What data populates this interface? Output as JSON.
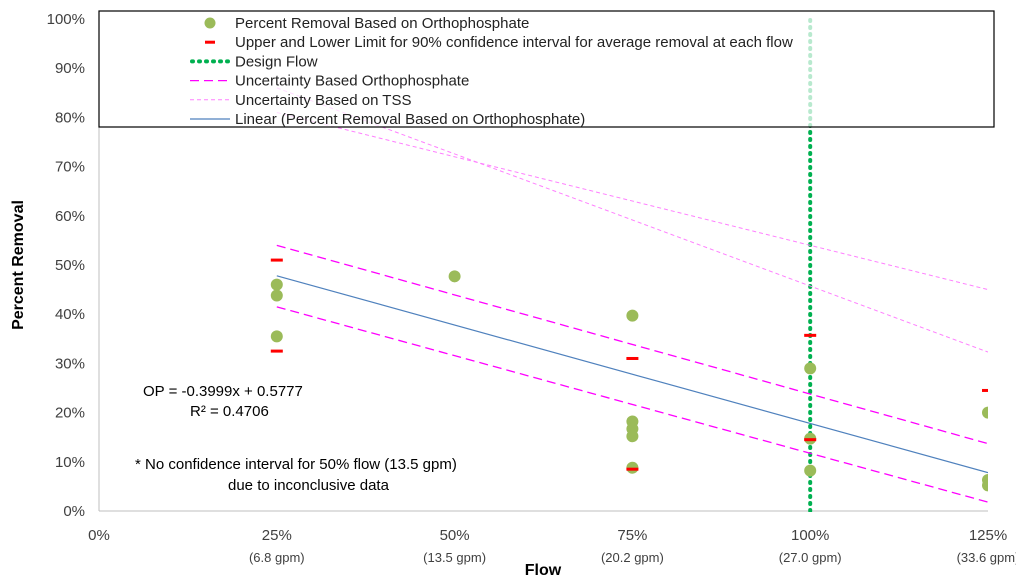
{
  "chart_data": {
    "type": "scatter",
    "xlabel": "Flow",
    "ylabel": "Percent Removal",
    "xlim": [
      0,
      1.25
    ],
    "ylim": [
      0,
      1.0
    ],
    "x_ticks": [
      {
        "value": 0,
        "label": "0%",
        "sub": ""
      },
      {
        "value": 0.25,
        "label": "25%",
        "sub": "(6.8 gpm)"
      },
      {
        "value": 0.5,
        "label": "50%",
        "sub": "(13.5 gpm)"
      },
      {
        "value": 0.75,
        "label": "75%",
        "sub": "(20.2 gpm)"
      },
      {
        "value": 1.0,
        "label": "100%",
        "sub": "(27.0 gpm)"
      },
      {
        "value": 1.25,
        "label": "125%",
        "sub": "(33.6 gpm)"
      }
    ],
    "y_ticks": [
      {
        "value": 0,
        "label": "0%"
      },
      {
        "value": 0.1,
        "label": "10%"
      },
      {
        "value": 0.2,
        "label": "20%"
      },
      {
        "value": 0.3,
        "label": "30%"
      },
      {
        "value": 0.4,
        "label": "40%"
      },
      {
        "value": 0.5,
        "label": "50%"
      },
      {
        "value": 0.6,
        "label": "60%"
      },
      {
        "value": 0.7,
        "label": "70%"
      },
      {
        "value": 0.8,
        "label": "80%"
      },
      {
        "value": 0.9,
        "label": "90%"
      },
      {
        "value": 1.0,
        "label": "100%"
      }
    ],
    "series": [
      {
        "name": "Percent Removal Based on Orthophosphate",
        "kind": "points",
        "color": "#9bbb59",
        "x": [
          0.25,
          0.25,
          0.25,
          0.5,
          0.75,
          0.75,
          0.75,
          0.75,
          0.75,
          1.0,
          1.0,
          1.0,
          1.25,
          1.25,
          1.25
        ],
        "y": [
          0.46,
          0.438,
          0.355,
          0.477,
          0.397,
          0.182,
          0.167,
          0.152,
          0.088,
          0.29,
          0.147,
          0.082,
          0.2,
          0.063,
          0.052
        ]
      },
      {
        "name": "Upper and Lower Limit for 90% confidence interval for average removal at each flow",
        "kind": "limits",
        "color": "#ff0000",
        "x": [
          0.25,
          0.25,
          0.75,
          0.75,
          1.0,
          1.0,
          1.25
        ],
        "y": [
          0.51,
          0.325,
          0.31,
          0.085,
          0.357,
          0.145,
          0.245
        ]
      },
      {
        "name": "Design Flow",
        "kind": "vline",
        "color": "#00b050",
        "x": [
          1.0,
          1.0
        ],
        "y": [
          0,
          1.0
        ]
      },
      {
        "name": "Uncertainty Based Orthophosphate",
        "kind": "dashed",
        "color": "#ff00ff",
        "lines": [
          {
            "x": [
              0.25,
              1.25
            ],
            "y": [
              0.54,
              0.137
            ]
          },
          {
            "x": [
              0.25,
              1.25
            ],
            "y": [
              0.415,
              0.018
            ]
          }
        ]
      },
      {
        "name": "Uncertainty Based on TSS",
        "kind": "dotted-thin",
        "color": "#ff80ff",
        "lines": [
          {
            "x": [
              0.25,
              1.25
            ],
            "y": [
              0.81,
              0.45
            ]
          },
          {
            "x": [
              0.25,
              1.25
            ],
            "y": [
              0.86,
              0.323
            ]
          }
        ]
      },
      {
        "name": "Linear (Percent Removal Based on Orthophosphate)",
        "kind": "line",
        "color": "#4f81bd",
        "x": [
          0.25,
          1.25
        ],
        "y": [
          0.478,
          0.078
        ]
      }
    ],
    "legend_position": "top",
    "annotations": {
      "equation": "OP = -0.3999x + 0.5777",
      "r_squared": "R² = 0.4706",
      "note_line1": "* No confidence interval for 50% flow (13.5 gpm)",
      "note_line2": "due to inconclusive data"
    },
    "grid": false
  }
}
